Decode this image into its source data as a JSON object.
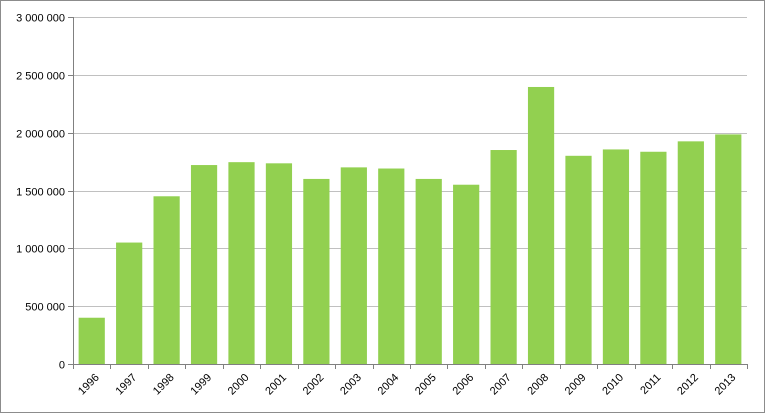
{
  "chart_data": {
    "type": "bar",
    "title": "",
    "xlabel": "",
    "ylabel": "",
    "categories": [
      "1996",
      "1997",
      "1998",
      "1999",
      "2000",
      "2001",
      "2002",
      "2003",
      "2004",
      "2005",
      "2006",
      "2007",
      "2008",
      "2009",
      "2010",
      "2011",
      "2012",
      "2013"
    ],
    "values": [
      400000,
      1050000,
      1450000,
      1720000,
      1745000,
      1735000,
      1600000,
      1700000,
      1690000,
      1600000,
      1550000,
      1850000,
      2395000,
      1800000,
      1855000,
      1835000,
      1925000,
      1985000
    ],
    "ylim": [
      0,
      3000000
    ],
    "yticks": [
      0,
      500000,
      1000000,
      1500000,
      2000000,
      2500000,
      3000000
    ],
    "ytick_labels": [
      "0",
      "500 000",
      "1 000 000",
      "1 500 000",
      "2 000 000",
      "2 500 000",
      "3 000 000"
    ],
    "grid": true,
    "legend": "none",
    "colors": {
      "bar": "#92d050",
      "grid": "#c0c0c0",
      "axis": "#808080",
      "frame": "#8c8c8c"
    }
  }
}
